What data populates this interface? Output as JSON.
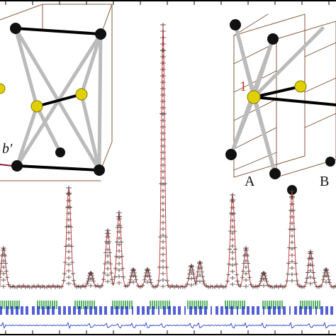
{
  "figure": {
    "inset_left": {
      "axis_label": "b′"
    },
    "inset_right": {
      "site_label": "1",
      "plane_labels": [
        "A",
        "B"
      ]
    }
  }
}
